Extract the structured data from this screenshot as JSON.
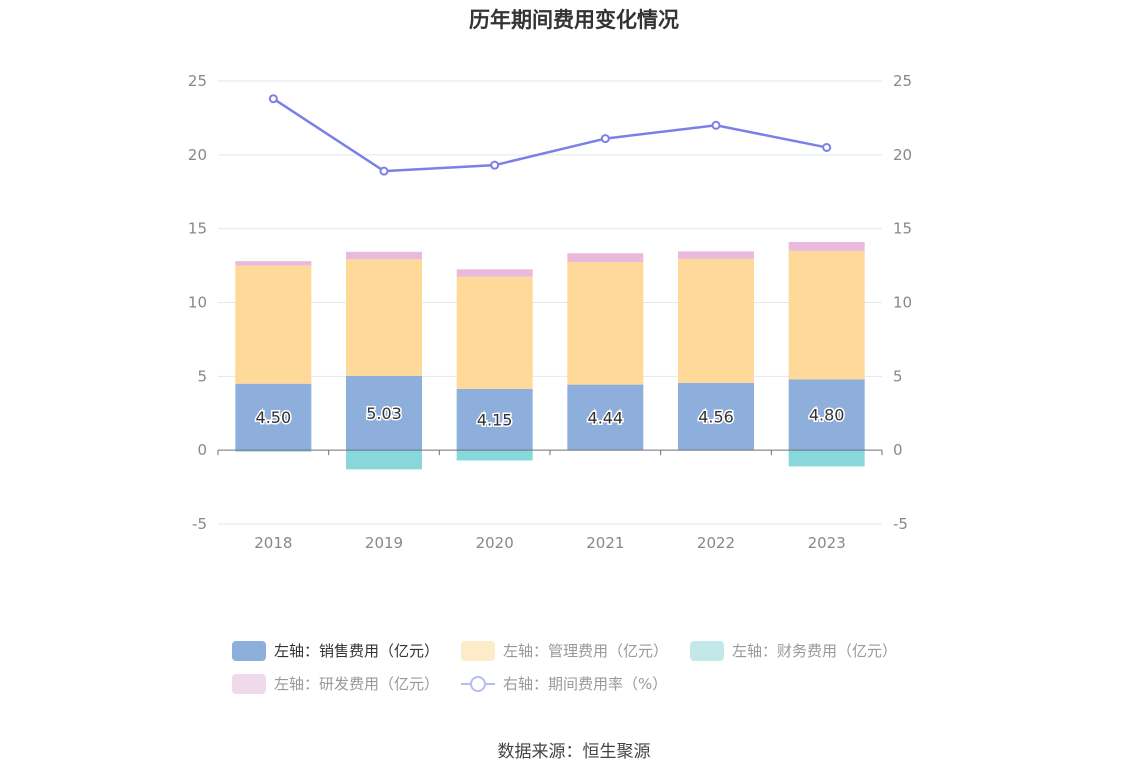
{
  "chart_data": {
    "type": "bar",
    "title": "历年期间费用变化情况",
    "categories": [
      "2018",
      "2019",
      "2020",
      "2021",
      "2022",
      "2023"
    ],
    "stacked": true,
    "left_axis": {
      "ylim": [
        -5,
        25
      ],
      "ticks": [
        -5,
        0,
        5,
        10,
        15,
        20,
        25
      ]
    },
    "right_axis": {
      "ylim": [
        -5,
        25
      ],
      "ticks": [
        -5,
        0,
        5,
        10,
        15,
        20,
        25
      ]
    },
    "series": [
      {
        "name": "左轴：销售费用（亿元）",
        "type": "bar",
        "axis": "left",
        "color": "#8eaedc",
        "values": [
          4.5,
          5.03,
          4.15,
          4.44,
          4.56,
          4.8
        ],
        "labels": [
          "4.50",
          "5.03",
          "4.15",
          "4.44",
          "4.56",
          "4.80"
        ]
      },
      {
        "name": "左轴：管理费用（亿元）",
        "type": "bar",
        "axis": "left",
        "color": "#fed999",
        "values": [
          8.0,
          7.9,
          7.6,
          8.3,
          8.4,
          8.7
        ]
      },
      {
        "name": "左轴：财务费用（亿元）",
        "type": "bar",
        "axis": "left",
        "color": "#87d8da",
        "values": [
          -0.1,
          -1.3,
          -0.7,
          0.0,
          0.0,
          -1.1
        ]
      },
      {
        "name": "左轴：研发费用（亿元）",
        "type": "bar",
        "axis": "left",
        "color": "#e9badc",
        "values": [
          0.3,
          0.5,
          0.5,
          0.6,
          0.5,
          0.6
        ]
      },
      {
        "name": "右轴：期间费用率（%）",
        "type": "line",
        "axis": "right",
        "color": "#7b80e8",
        "values": [
          23.8,
          18.9,
          19.3,
          21.1,
          22.0,
          20.5
        ]
      }
    ],
    "legend_position": "bottom",
    "grid": true
  },
  "legend": [
    {
      "label": "左轴：销售费用（亿元）",
      "color": "#8eaedc",
      "kind": "bar",
      "active": true
    },
    {
      "label": "左轴：管理费用（亿元）",
      "color": "#fdebc9",
      "kind": "bar",
      "active": false
    },
    {
      "label": "左轴：财务费用（亿元）",
      "color": "#c3e8ea",
      "kind": "bar",
      "active": false
    },
    {
      "label": "左轴：研发费用（亿元）",
      "color": "#f1d9ec",
      "kind": "bar",
      "active": false
    },
    {
      "label": "右轴：期间费用率（%）",
      "color": "#b8bcf0",
      "kind": "line",
      "active": false
    }
  ],
  "source": "数据来源：恒生聚源"
}
